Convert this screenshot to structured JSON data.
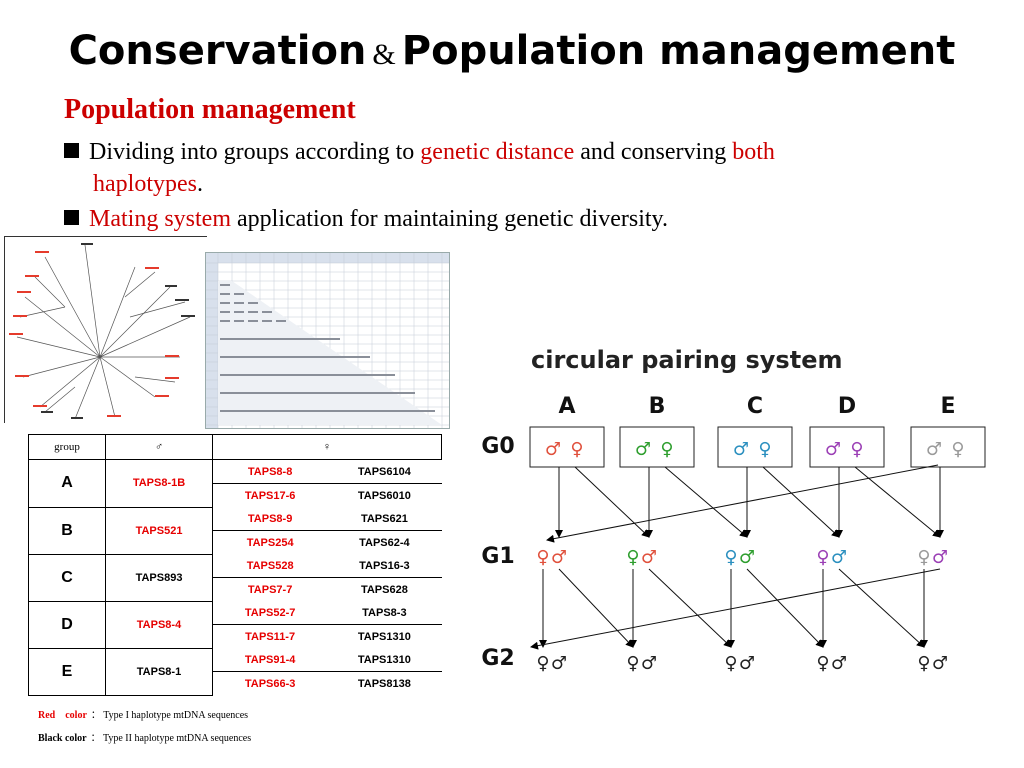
{
  "slide": {
    "title_a": "Conservation",
    "title_amp": "&",
    "title_b": "Population management",
    "subtitle": "Population management"
  },
  "bullets": [
    {
      "parts": [
        "Dividing into groups according to ",
        "genetic distance",
        " and conserving ",
        "both"
      ],
      "line2_red": "haplotypes",
      "line2_tail": "."
    },
    {
      "parts": [
        "Mating system",
        " application for maintaining genetic diversity."
      ]
    }
  ],
  "colors": {
    "accent_red": "#cc0000",
    "A": "#e0503c",
    "B": "#2e9e2e",
    "C": "#2a8fbf",
    "D": "#9b3fb5",
    "E": "#9a9a9a"
  },
  "table": {
    "headers": [
      "group",
      "♂",
      "♀"
    ],
    "rows": [
      {
        "group": "A",
        "male": "TAPS8-1B",
        "male_red": true,
        "females": [
          [
            "TAPS8-8",
            "TAPS6104"
          ],
          [
            "TAPS17-6",
            "TAPS6010"
          ]
        ]
      },
      {
        "group": "B",
        "male": "TAPS521",
        "male_red": true,
        "females": [
          [
            "TAPS8-9",
            "TAPS621"
          ],
          [
            "TAPS254",
            "TAPS62-4"
          ]
        ]
      },
      {
        "group": "C",
        "male": "TAPS893",
        "male_red": false,
        "females": [
          [
            "TAPS528",
            "TAPS16-3"
          ],
          [
            "TAPS7-7",
            "TAPS628"
          ]
        ]
      },
      {
        "group": "D",
        "male": "TAPS8-4",
        "male_red": true,
        "females": [
          [
            "TAPS52-7",
            "TAPS8-3"
          ],
          [
            "TAPS11-7",
            "TAPS1310"
          ]
        ]
      },
      {
        "group": "E",
        "male": "TAPS8-1",
        "male_red": false,
        "females": [
          [
            "TAPS91-4",
            "TAPS1310"
          ],
          [
            "TAPS66-3",
            "TAPS8138"
          ]
        ]
      }
    ]
  },
  "legend": [
    {
      "label": "Red　color",
      "sep": "：",
      "text": "Type I haplotype mtDNA sequences"
    },
    {
      "label": "Black color",
      "sep": "：",
      "text": "Type II haplotype mtDNA sequences"
    }
  ],
  "diagram": {
    "title": "circular pairing system",
    "groups": [
      "A",
      "B",
      "C",
      "D",
      "E"
    ],
    "generations": [
      "G0",
      "G1",
      "G2"
    ],
    "male_symbol": "♂",
    "female_symbol": "♀"
  }
}
